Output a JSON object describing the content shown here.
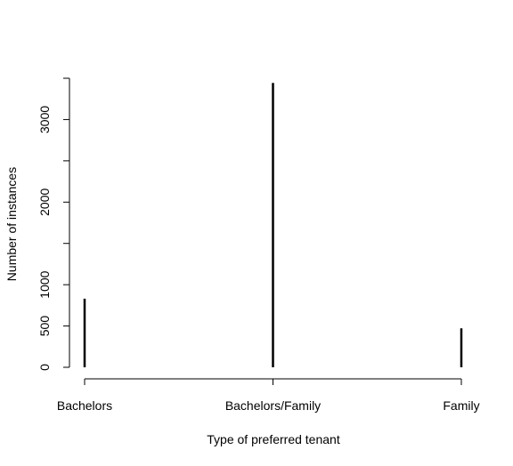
{
  "chart_data": {
    "type": "bar",
    "style": "histogram-spikes",
    "title": "",
    "xlabel": "Type of preferred tenant",
    "ylabel": "Number of instances",
    "categories": [
      "Bachelors",
      "Bachelors/Family",
      "Family"
    ],
    "values": [
      830,
      3444,
      472
    ],
    "ylim": [
      0,
      3500
    ],
    "y_ticks": [
      0,
      500,
      1000,
      2000,
      3000
    ],
    "y_minor_ticks": [
      1500,
      2500,
      3500
    ],
    "grid": false,
    "legend": "none",
    "colors": {
      "bar": "#000000",
      "axis": "#000000",
      "background": "#ffffff"
    }
  }
}
